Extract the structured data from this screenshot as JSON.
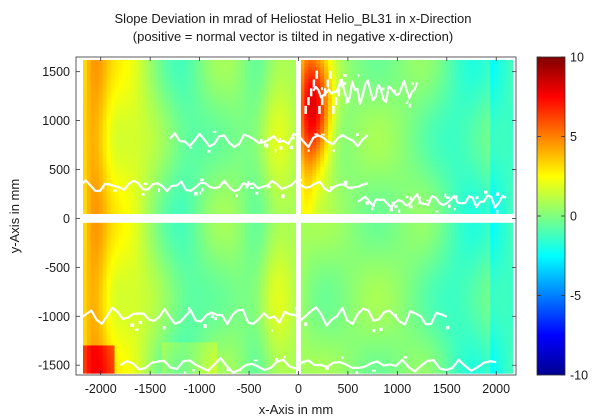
{
  "chart_data": {
    "type": "heatmap",
    "title": "Slope Deviation in mrad of Heliostat Helio_BL31 in x-Direction",
    "subtitle": "(positive = normal vector is tilted in negative x-direction)",
    "xlabel": "x-Axis in mm",
    "ylabel": "y-Axis in mm",
    "xlim": [
      -2250,
      2200
    ],
    "ylim": [
      -1600,
      1650
    ],
    "x_ticks": [
      -2000,
      -1500,
      -1000,
      -500,
      0,
      500,
      1000,
      1500,
      2000
    ],
    "y_ticks": [
      -1500,
      -1000,
      -500,
      0,
      500,
      1000,
      1500
    ],
    "colorbar": {
      "range": [
        -10,
        10
      ],
      "ticks": [
        -10,
        -5,
        0,
        5,
        10
      ],
      "colormap": "jet"
    },
    "field_description": "Slope deviation field on four mirror facets separated by gaps at x=0 and y=0; values mostly between -3 and +4 mrad, with a hotspot up to about +8 mrad just right of x=0 in the upper half",
    "grid": false,
    "legend": "colorbar-right"
  }
}
